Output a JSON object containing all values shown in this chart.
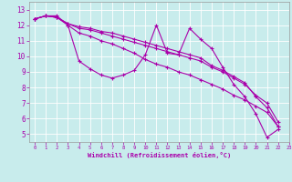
{
  "xlabel": "Windchill (Refroidissement éolien,°C)",
  "bg_color": "#c8ecec",
  "line_color": "#aa00aa",
  "xlim": [
    -0.5,
    23
  ],
  "ylim": [
    4.5,
    13.5
  ],
  "yticks": [
    5,
    6,
    7,
    8,
    9,
    10,
    11,
    12,
    13
  ],
  "xticks": [
    0,
    1,
    2,
    3,
    4,
    5,
    6,
    7,
    8,
    9,
    10,
    11,
    12,
    13,
    14,
    15,
    16,
    17,
    18,
    19,
    20,
    21,
    22,
    23
  ],
  "series": [
    [
      12.4,
      12.6,
      12.6,
      12.0,
      9.7,
      9.2,
      8.8,
      8.6,
      8.8,
      9.1,
      10.1,
      12.0,
      10.2,
      10.1,
      11.8,
      11.1,
      10.5,
      9.3,
      8.2,
      7.4,
      6.3,
      4.8,
      5.3,
      null
    ],
    [
      12.4,
      12.6,
      12.5,
      12.0,
      11.5,
      11.3,
      11.0,
      10.8,
      10.5,
      10.2,
      9.8,
      9.5,
      9.3,
      9.0,
      8.8,
      8.5,
      8.2,
      7.9,
      7.5,
      7.2,
      6.8,
      6.4,
      5.5,
      null
    ],
    [
      12.4,
      12.6,
      12.5,
      12.1,
      11.8,
      11.7,
      11.5,
      11.3,
      11.1,
      10.9,
      10.7,
      10.5,
      10.3,
      10.1,
      9.9,
      9.7,
      9.3,
      9.0,
      8.6,
      8.2,
      7.5,
      7.0,
      5.8,
      null
    ],
    [
      12.4,
      12.6,
      12.5,
      12.1,
      11.9,
      11.8,
      11.6,
      11.5,
      11.3,
      11.1,
      10.9,
      10.7,
      10.5,
      10.3,
      10.1,
      9.9,
      9.4,
      9.1,
      8.7,
      8.3,
      7.4,
      6.7,
      5.5,
      null
    ]
  ]
}
